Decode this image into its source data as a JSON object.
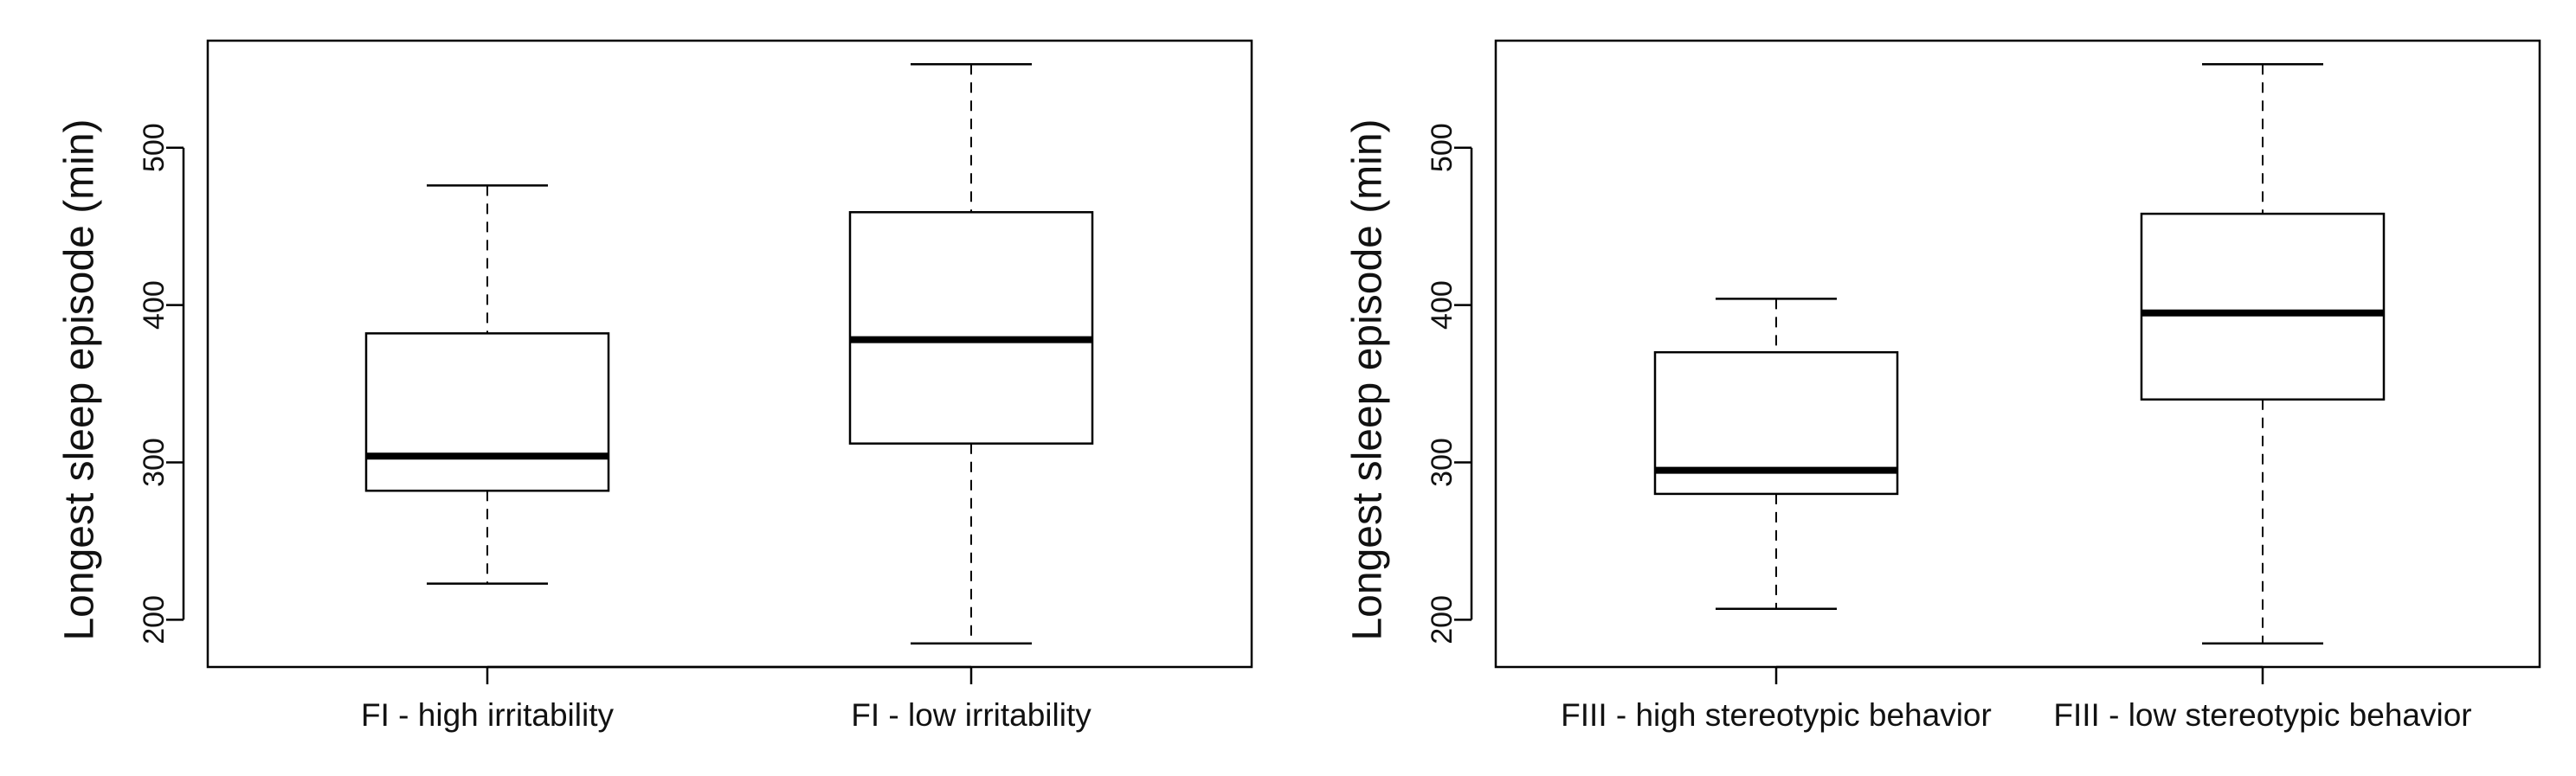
{
  "chart_data": [
    {
      "type": "box",
      "ylabel": "Longest sleep episode (min)",
      "yticks": [
        200,
        300,
        400,
        500
      ],
      "ylim": [
        170,
        568
      ],
      "categories": [
        "FI - high irritability",
        "FI - low irritability"
      ],
      "boxes": [
        {
          "category": "FI - high irritability",
          "whisker_low": 223,
          "q1": 282,
          "median": 304,
          "q3": 382,
          "whisker_high": 476
        },
        {
          "category": "FI - low irritability",
          "whisker_low": 185,
          "q1": 312,
          "median": 378,
          "q3": 459,
          "whisker_high": 553
        }
      ]
    },
    {
      "type": "box",
      "ylabel": "Longest sleep episode (min)",
      "yticks": [
        200,
        300,
        400,
        500
      ],
      "ylim": [
        170,
        568
      ],
      "categories": [
        "FIII - high stereotypic behavior",
        "FIII - low stereotypic behavior"
      ],
      "boxes": [
        {
          "category": "FIII - high stereotypic behavior",
          "whisker_low": 207,
          "q1": 280,
          "median": 295,
          "q3": 370,
          "whisker_high": 404
        },
        {
          "category": "FIII - low stereotypic behavior",
          "whisker_low": 185,
          "q1": 340,
          "median": 395,
          "q3": 458,
          "whisker_high": 553
        }
      ]
    }
  ]
}
